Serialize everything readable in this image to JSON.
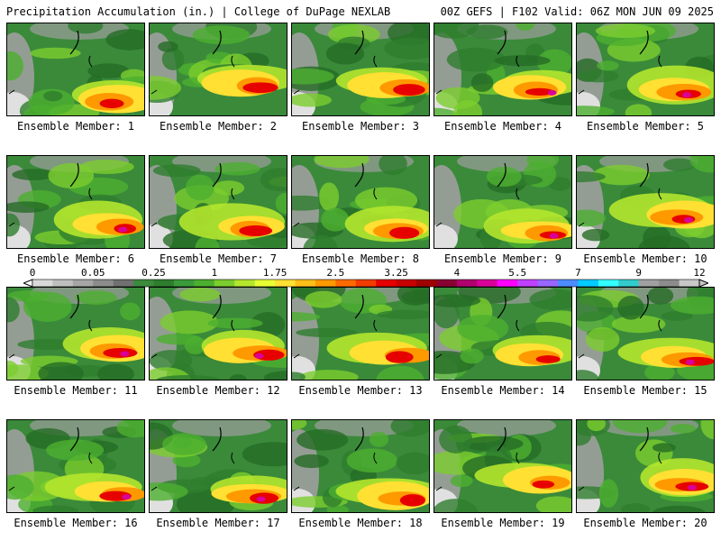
{
  "header": {
    "left_title": "Precipitation Accumulation (in.) | College of DuPage NEXLAB",
    "right_title": "00Z GEFS | F102 Valid: 06Z MON JUN 09 2025"
  },
  "members": [
    "Ensemble Member: 1",
    "Ensemble Member: 2",
    "Ensemble Member: 3",
    "Ensemble Member: 4",
    "Ensemble Member: 5",
    "Ensemble Member: 6",
    "Ensemble Member: 7",
    "Ensemble Member: 8",
    "Ensemble Member: 9",
    "Ensemble Member: 10",
    "Ensemble Member: 11",
    "Ensemble Member: 12",
    "Ensemble Member: 13",
    "Ensemble Member: 14",
    "Ensemble Member: 15",
    "Ensemble Member: 16",
    "Ensemble Member: 17",
    "Ensemble Member: 18",
    "Ensemble Member: 19",
    "Ensemble Member: 20"
  ],
  "colorbar": {
    "tick_labels": [
      "0",
      "0.05",
      "0.25",
      "1",
      "1.75",
      "2.5",
      "3.25",
      "4",
      "5.5",
      "7",
      "9",
      "12"
    ],
    "colors": [
      "#d9d9d9",
      "#bfbfbf",
      "#a6a6a6",
      "#8c8c8c",
      "#707070",
      "#3c8a3c",
      "#2e7d2e",
      "#3a9b3a",
      "#4caf2f",
      "#7ccd2e",
      "#b4e62d",
      "#e6ff33",
      "#ffe033",
      "#ffbf1a",
      "#ff9900",
      "#ff6a00",
      "#f23c00",
      "#e60000",
      "#c80000",
      "#a00000",
      "#8a0032",
      "#b0006e",
      "#d9009a",
      "#ff00ff",
      "#c040ff",
      "#9966ff",
      "#4d8cff",
      "#00ccff",
      "#33ffff",
      "#33cccc",
      "#a0a0a0",
      "#8c8c8c",
      "#c8c8c8"
    ]
  }
}
